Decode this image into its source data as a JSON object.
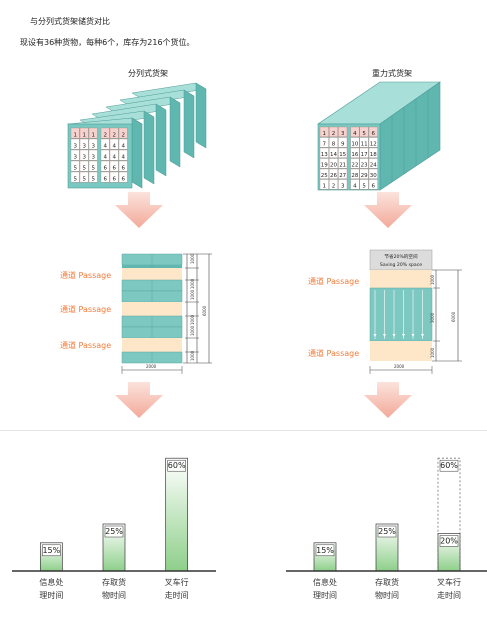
{
  "header": {
    "title": "与分列式货架储货对比",
    "subtitle": "现设有36种货物，每种6个，库存为216个货位。"
  },
  "left": {
    "rack_title": "分列式货架",
    "grid": [
      [
        "1",
        "1",
        "1",
        "2",
        "2",
        "2"
      ],
      [
        "3",
        "3",
        "3",
        "4",
        "4",
        "4"
      ],
      [
        "3",
        "3",
        "3",
        "4",
        "4",
        "4"
      ],
      [
        "5",
        "5",
        "5",
        "6",
        "6",
        "6"
      ],
      [
        "5",
        "5",
        "5",
        "6",
        "6",
        "6"
      ]
    ],
    "passage_label": "通道 Passage",
    "dim_labels": [
      "1000",
      "1000",
      "1000",
      "1000",
      "1000",
      "1000",
      "6000"
    ],
    "bottom_dim": "2000"
  },
  "right": {
    "rack_title": "重力式货架",
    "grid": [
      [
        "1",
        "2",
        "3",
        "4",
        "5",
        "6"
      ],
      [
        "7",
        "8",
        "9",
        "10",
        "11",
        "12"
      ],
      [
        "13",
        "14",
        "15",
        "16",
        "17",
        "18"
      ],
      [
        "19",
        "20",
        "21",
        "22",
        "23",
        "24"
      ],
      [
        "25",
        "26",
        "27",
        "28",
        "29",
        "30"
      ],
      [
        "1",
        "2",
        "3",
        "4",
        "5",
        "6"
      ]
    ],
    "saving_zh": "节省20%的空间",
    "saving_en": "Saving 20% space",
    "passage_label": "通道 Passage",
    "dim_labels": [
      "1000",
      "3000",
      "1000",
      "6000"
    ],
    "bottom_dim": "2000"
  },
  "chart_data": [
    {
      "type": "bar",
      "categories": [
        "信息处理时间",
        "存取货物时间",
        "叉车行走时间"
      ],
      "values": [
        15,
        25,
        60
      ],
      "labels": [
        "15%",
        "25%",
        "60%"
      ],
      "ylim": [
        0,
        100
      ]
    },
    {
      "type": "bar",
      "categories": [
        "信息处理时间",
        "存取货物时间",
        "叉车行走时间"
      ],
      "values": [
        15,
        25,
        20
      ],
      "labels": [
        "15%",
        "25%",
        "20%"
      ],
      "ghost": {
        "index": 2,
        "value": 60,
        "label": "60%"
      },
      "ylim": [
        0,
        100
      ]
    }
  ],
  "colors": {
    "rack_face": "#79c9c2",
    "rack_top": "#a9dfd9",
    "rack_side": "#5fb7b0",
    "cell_red": "#f6d2cf",
    "passage": "#fde7c8",
    "passage_text": "#f07b3a",
    "arrow": "#f6c3b8",
    "bar_top": "#ffffff",
    "bar_bottom": "#8ecf8a"
  }
}
